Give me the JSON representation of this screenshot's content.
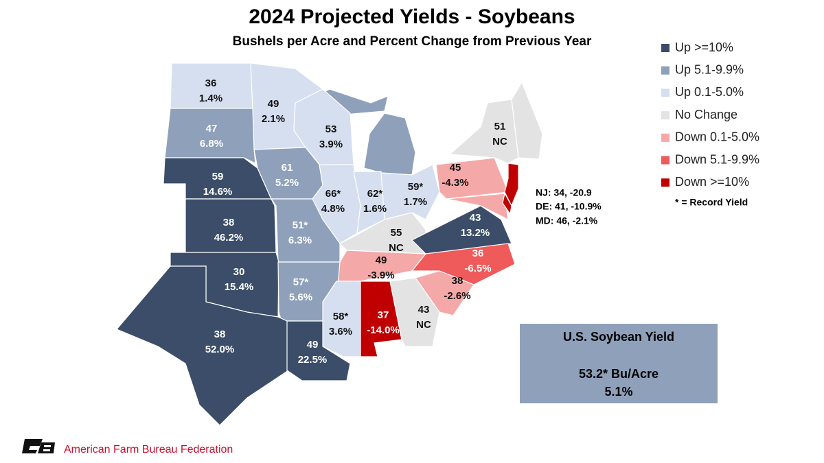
{
  "title": "2024 Projected Yields - Soybeans",
  "subtitle": "Bushels per Acre and Percent Change from Previous Year",
  "legend": [
    {
      "label": "Up >=10%",
      "color": "#3b4d68"
    },
    {
      "label": "Up 5.1-9.9%",
      "color": "#8fa0ba"
    },
    {
      "label": "Up 0.1-5.0%",
      "color": "#d6dff0"
    },
    {
      "label": "No Change",
      "color": "#e3e3e3"
    },
    {
      "label": "Down 0.1-5.0%",
      "color": "#f5a8a8"
    },
    {
      "label": "Down 5.1-9.9%",
      "color": "#ef5a5a"
    },
    {
      "label": "Down >=10%",
      "color": "#c00000"
    }
  ],
  "states": [
    {
      "yield": "36",
      "change": "1.4%",
      "color": "#d6dff0"
    },
    {
      "yield": "49",
      "change": "2.1%",
      "color": "#d6dff0"
    },
    {
      "yield": "47",
      "change": "6.8%",
      "color": "#8fa0ba"
    },
    {
      "yield": "53",
      "change": "3.9%",
      "color": "#d6dff0"
    },
    {
      "yield": "51",
      "change": "NC",
      "color": "#e3e3e3"
    },
    {
      "yield": "59",
      "change": "14.6%",
      "color": "#3b4d68"
    },
    {
      "yield": "61",
      "change": "5.2%",
      "color": "#8fa0ba"
    },
    {
      "yield": "45",
      "change": "-4.3%",
      "color": "#f5a8a8"
    },
    {
      "yield": "66*",
      "change": "4.8%",
      "color": "#d6dff0"
    },
    {
      "yield": "62*",
      "change": "1.6%",
      "color": "#d6dff0"
    },
    {
      "yield": "59*",
      "change": "1.7%",
      "color": "#d6dff0"
    },
    {
      "yield": "38",
      "change": "46.2%",
      "color": "#3b4d68"
    },
    {
      "yield": "51*",
      "change": "6.3%",
      "color": "#8fa0ba"
    },
    {
      "yield": "55",
      "change": "NC",
      "color": "#e3e3e3"
    },
    {
      "yield": "43",
      "change": "13.2%",
      "color": "#3b4d68"
    },
    {
      "yield": "30",
      "change": "15.4%",
      "color": "#3b4d68"
    },
    {
      "yield": "49",
      "change": "-3.9%",
      "color": "#f5a8a8"
    },
    {
      "yield": "36",
      "change": "-6.5%",
      "color": "#ef5a5a"
    },
    {
      "yield": "57*",
      "change": "5.6%",
      "color": "#8fa0ba"
    },
    {
      "yield": "38",
      "change": "-2.6%",
      "color": "#f5a8a8"
    },
    {
      "yield": "58*",
      "change": "3.6%",
      "color": "#d6dff0"
    },
    {
      "yield": "37",
      "change": "-14.0%",
      "color": "#c00000"
    },
    {
      "yield": "43",
      "change": "NC",
      "color": "#e3e3e3"
    },
    {
      "yield": "38",
      "change": "52.0%",
      "color": "#3b4d68"
    },
    {
      "yield": "49",
      "change": "22.5%",
      "color": "#3b4d68"
    }
  ],
  "callout": [
    "NJ: 34, -20.9",
    "DE: 41, -10.9%",
    "MD: 46, -2.1%"
  ],
  "note": "* = Record Yield",
  "summary": {
    "title": "U.S. Soybean Yield",
    "yield": "53.2* Bu/Acre",
    "change": "5.1%"
  },
  "footer": "American Farm Bureau Federation"
}
